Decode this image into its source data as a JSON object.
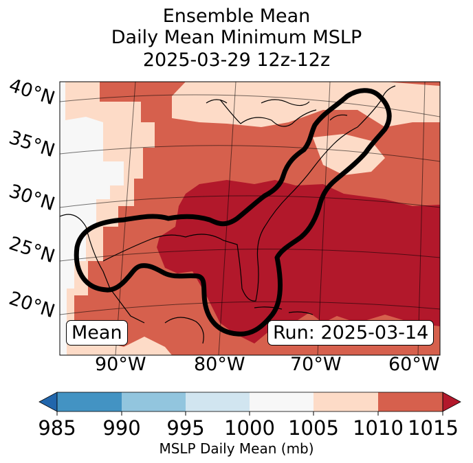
{
  "title": {
    "line1": "Ensemble Mean",
    "line2": "Daily Mean Minimum MSLP",
    "line3": "2025-03-29 12z-12z"
  },
  "map": {
    "lat_labels": [
      "40°N",
      "35°N",
      "30°N",
      "25°N",
      "20°N"
    ],
    "lon_labels": [
      "90°W",
      "80°W",
      "70°W",
      "60°W"
    ],
    "mean_label": "Mean",
    "run_label": "Run: 2025-03-14"
  },
  "colors": {
    "c985": "#2166ac",
    "c990": "#4393c3",
    "c995": "#92c5de",
    "c1000": "#d1e5f0",
    "c1005": "#f7f7f7",
    "c1010": "#fddbc7",
    "c1015": "#d6604d",
    "over": "#b2182b",
    "contour": "#000000"
  },
  "colorbar": {
    "ticks": [
      "985",
      "990",
      "995",
      "1000",
      "1005",
      "1010",
      "1015"
    ],
    "label": "MSLP Daily Mean (mb)"
  }
}
